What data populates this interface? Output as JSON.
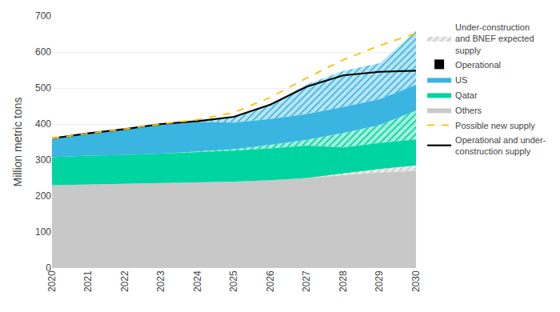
{
  "chart_data": {
    "type": "area",
    "stacked": true,
    "x": [
      2020,
      2021,
      2022,
      2023,
      2024,
      2025,
      2026,
      2027,
      2028,
      2029,
      2030
    ],
    "xlim": [
      2020,
      2030
    ],
    "xticks": [
      2020,
      2021,
      2022,
      2023,
      2024,
      2025,
      2026,
      2027,
      2028,
      2029,
      2030
    ],
    "ylim": [
      0,
      700
    ],
    "yticks": [
      0,
      100,
      200,
      300,
      400,
      500,
      600,
      700
    ],
    "ylabel": "Million metric tons",
    "grid": true,
    "legend": "right",
    "annotations": [
      {
        "text": "Operational",
        "color": "#000000"
      }
    ],
    "series": [
      {
        "name": "Others",
        "type": "area",
        "color": "#c8c8c8",
        "values": [
          230,
          232,
          234,
          236,
          238,
          240,
          244,
          250,
          258,
          265,
          270
        ]
      },
      {
        "name": "Under-construction\nand BNEF expected\nsupply",
        "type": "hatched",
        "color": "#c8c8c8",
        "values": [
          0,
          0,
          0,
          0,
          0,
          0,
          0,
          0,
          5,
          10,
          15
        ]
      },
      {
        "name": "Qatar",
        "type": "area",
        "color": "#00d4a0",
        "values": [
          78,
          80,
          80,
          82,
          84,
          86,
          88,
          90,
          72,
          72,
          72
        ]
      },
      {
        "name": "Under-construction\nand BNEF expected\nsupply",
        "type": "hatched",
        "color": "#00d4a0",
        "values": [
          0,
          0,
          0,
          0,
          2,
          4,
          10,
          16,
          40,
          50,
          80
        ]
      },
      {
        "name": "US",
        "type": "area",
        "color": "#3ab4e0",
        "values": [
          52,
          62,
          72,
          82,
          82,
          74,
          72,
          72,
          72,
          72,
          72
        ]
      },
      {
        "name": "Under-construction\nand BNEF expected\nsupply",
        "type": "hatched",
        "color": "#3ab4e0",
        "values": [
          0,
          0,
          0,
          0,
          4,
          16,
          40,
          82,
          100,
          100,
          150
        ]
      },
      {
        "name": "Operational and under-\nconstruction supply",
        "type": "line",
        "line_style": "solid",
        "color": "#000000",
        "values": [
          360,
          374,
          386,
          400,
          408,
          420,
          454,
          504,
          535,
          545,
          548
        ]
      },
      {
        "name": "Possible new supply",
        "type": "line",
        "line_style": "dashed",
        "color": "#ffc000",
        "values": [
          360,
          374,
          386,
          400,
          412,
          432,
          474,
          528,
          578,
          618,
          652
        ]
      }
    ]
  }
}
